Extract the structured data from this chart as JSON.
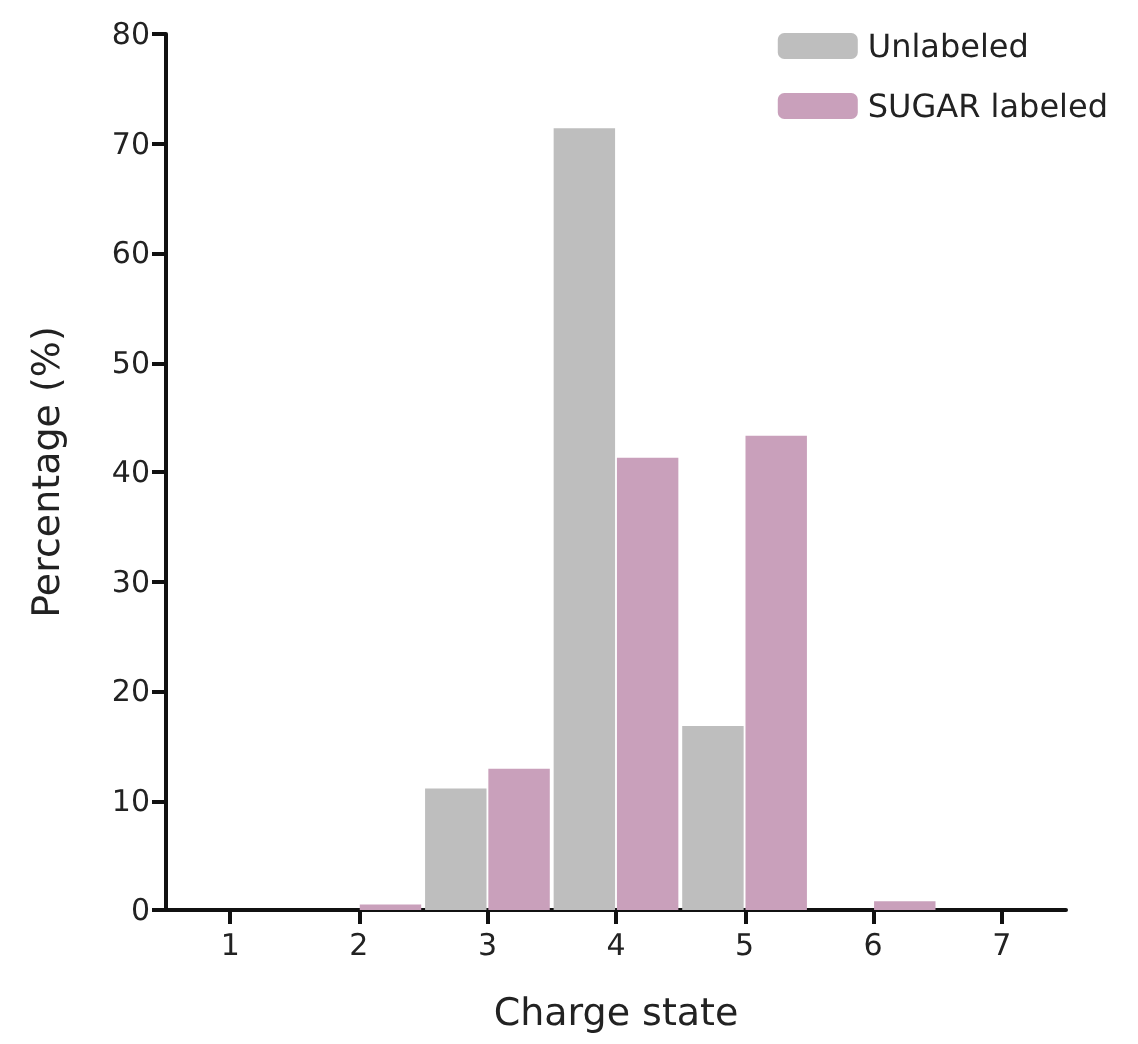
{
  "chart_data": {
    "type": "bar",
    "xlabel": "Charge state",
    "ylabel": "Percentage (%)",
    "categories": [
      "1",
      "2",
      "3",
      "4",
      "5",
      "6",
      "7"
    ],
    "series": [
      {
        "name": "Unlabeled",
        "color": "#bebebe",
        "values": [
          0,
          0,
          11.1,
          71.4,
          16.8,
          0,
          0
        ]
      },
      {
        "name": "SUGAR labeled",
        "color": "#c9a0bb",
        "values": [
          0,
          0.5,
          12.9,
          41.3,
          43.3,
          0.8,
          0
        ]
      }
    ],
    "ylim": [
      0,
      80
    ],
    "yticks": [
      0,
      10,
      20,
      30,
      40,
      50,
      60,
      70,
      80
    ],
    "grid": false,
    "legend": "top right"
  }
}
